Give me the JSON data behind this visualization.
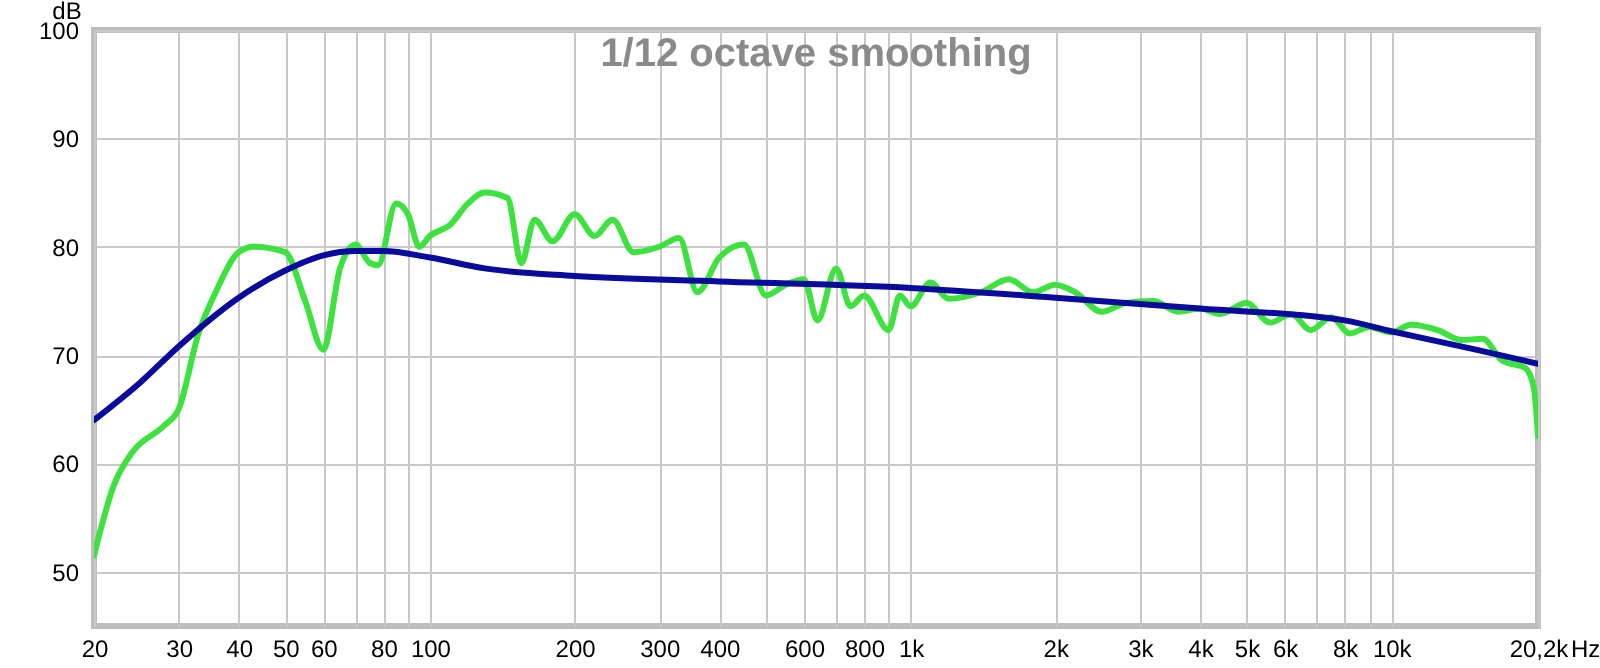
{
  "chart_data": {
    "type": "line",
    "title": "1/12 octave smoothing",
    "ylabel": "dB",
    "xlim": [
      20,
      20200
    ],
    "ylim": [
      45,
      100
    ],
    "log": "x",
    "grid": true,
    "legend": false,
    "marker": "none",
    "line_style": "solid",
    "xticks": [
      20,
      30,
      40,
      50,
      60,
      {
        "value": 70,
        "label": null
      },
      80,
      {
        "value": 90,
        "label": null
      },
      100,
      200,
      300,
      400,
      {
        "value": 500,
        "label": null
      },
      600,
      {
        "value": 700,
        "label": null
      },
      800,
      {
        "value": 900,
        "label": null
      },
      {
        "value": 1000,
        "label": "1k"
      },
      {
        "value": 2000,
        "label": "2k"
      },
      {
        "value": 3000,
        "label": "3k"
      },
      {
        "value": 4000,
        "label": "4k"
      },
      {
        "value": 5000,
        "label": "5k"
      },
      {
        "value": 6000,
        "label": "6k"
      },
      {
        "value": 7000,
        "label": null
      },
      {
        "value": 8000,
        "label": "8k"
      },
      {
        "value": 9000,
        "label": null
      },
      {
        "value": 10000,
        "label": "10k"
      },
      {
        "value": 20200,
        "label": "20,2k"
      }
    ],
    "xlabel": "Hz",
    "yticks": [
      50,
      60,
      70,
      80,
      90,
      100
    ],
    "series": [
      {
        "color": "#3ee23e",
        "x": [
          20,
          22,
          24,
          28,
          30,
          33,
          36,
          40,
          43,
          50,
          55,
          60,
          65,
          70,
          75,
          78,
          85,
          90,
          95,
          100,
          110,
          120,
          130,
          145,
          155,
          165,
          180,
          200,
          220,
          240,
          265,
          300,
          330,
          360,
          400,
          450,
          500,
          550,
          600,
          640,
          700,
          750,
          800,
          900,
          950,
          1000,
          1100,
          1200,
          1400,
          1600,
          1800,
          2000,
          2200,
          2500,
          2800,
          3200,
          3600,
          4000,
          4400,
          5000,
          5600,
          6200,
          6800,
          7500,
          8200,
          9000,
          10000,
          11000,
          12500,
          14000,
          15500,
          17000,
          19000,
          19800,
          20200
        ],
        "values": [
          51.5,
          58,
          61,
          63.5,
          65,
          72,
          76,
          79.5,
          80,
          79.5,
          75,
          70.5,
          78,
          80.2,
          78.5,
          78.3,
          84,
          83,
          80,
          81,
          82,
          84,
          85,
          84.5,
          78.5,
          82.5,
          80.5,
          83,
          81,
          82.5,
          79.5,
          80,
          80.8,
          75.8,
          79,
          80.2,
          75.5,
          76.5,
          77,
          73.2,
          78,
          74.5,
          75.5,
          72.3,
          75.5,
          74.5,
          76.7,
          75.2,
          75.8,
          77,
          75.8,
          76.5,
          75.8,
          74,
          74.8,
          75,
          74,
          74.3,
          73.8,
          74.8,
          73,
          73.8,
          72.3,
          73.5,
          72,
          72.6,
          72.1,
          72.8,
          72.3,
          71.4,
          71.5,
          69.5,
          68.8,
          67,
          62.5
        ]
      },
      {
        "color": "#0a0a9c",
        "x": [
          20,
          25,
          30,
          40,
          50,
          60,
          70,
          80,
          100,
          130,
          200,
          400,
          1000,
          2000,
          4000,
          8000,
          10000,
          15000,
          20200
        ],
        "values": [
          64,
          67.5,
          70.8,
          75.3,
          77.8,
          79.2,
          79.6,
          79.6,
          79,
          78,
          77.3,
          76.8,
          76.2,
          75.3,
          74.3,
          73.2,
          72.2,
          70.5,
          69.2
        ]
      }
    ]
  }
}
